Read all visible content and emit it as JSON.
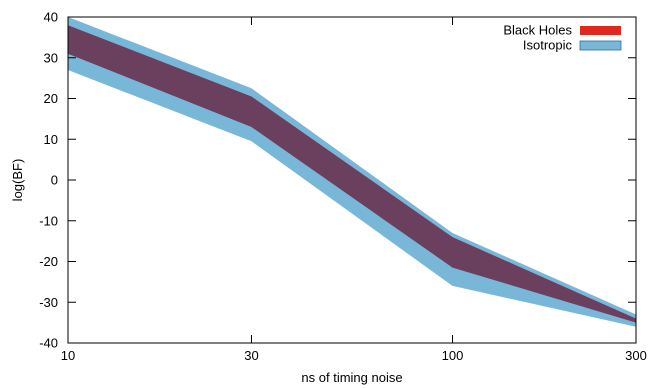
{
  "chart_data": {
    "type": "area",
    "xlabel": "ns of timing noise",
    "ylabel": "log(BF)",
    "xscale": "log",
    "xlim": [
      10,
      300
    ],
    "ylim": [
      -40,
      40
    ],
    "xticks": [
      "10",
      "30",
      "100",
      "300"
    ],
    "yticks": [
      "-40",
      "-30",
      "-20",
      "-10",
      "0",
      "10",
      "20",
      "30",
      "40"
    ],
    "legend_position": "top-right",
    "series": [
      {
        "name": "Isotropic",
        "color": "#79b7d9",
        "x": [
          10,
          30,
          100,
          300
        ],
        "upper": [
          40,
          22.5,
          -13,
          -33
        ],
        "lower": [
          27,
          9.5,
          -26,
          -36
        ]
      },
      {
        "name": "Black Holes",
        "color": "#e0281e",
        "x": [
          10,
          30,
          100,
          300
        ],
        "upper": [
          38,
          20.5,
          -14,
          -34
        ],
        "lower": [
          31,
          13,
          -21.5,
          -35
        ]
      }
    ],
    "overlap_color": "#6b3f5e"
  }
}
